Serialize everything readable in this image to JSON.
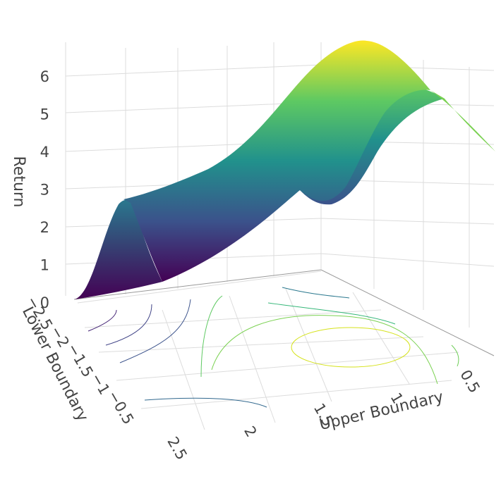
{
  "chart_data": {
    "type": "surface",
    "title": "",
    "colorscale": [
      "#440154",
      "#3b528b",
      "#21918c",
      "#5ec962",
      "#fde725"
    ],
    "axes": {
      "x": {
        "label": "Upper Boundary",
        "ticks": [
          "2.5",
          "2",
          "1.5",
          "1",
          "0.5"
        ]
      },
      "y": {
        "label": "Lower Boundary",
        "ticks": [
          "-2.5",
          "-2",
          "-1.5",
          "-1",
          "-0.5"
        ]
      },
      "z": {
        "label": "Return",
        "ticks": [
          "0",
          "1",
          "2",
          "3",
          "4",
          "5",
          "6"
        ],
        "range": [
          0,
          6.6
        ]
      }
    },
    "contours": "projected on floor",
    "grid": true
  }
}
